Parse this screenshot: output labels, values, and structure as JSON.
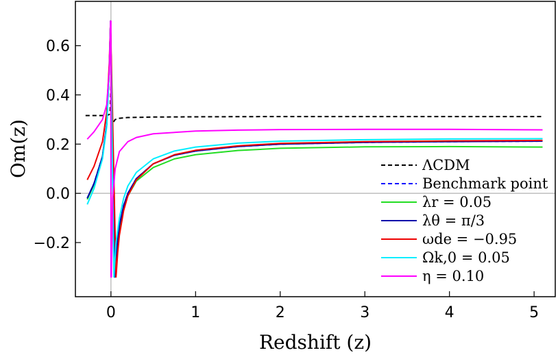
{
  "chart_data": {
    "type": "line",
    "title": "",
    "xlabel": "Redshift (z)",
    "ylabel": "Om(z)",
    "xlim": [
      -0.42,
      5.25
    ],
    "ylim": [
      -0.42,
      0.78
    ],
    "x_ticks": [
      0,
      1,
      2,
      3,
      4,
      5
    ],
    "x_tick_labels": [
      "0",
      "1",
      "2",
      "3",
      "4",
      "5"
    ],
    "y_ticks": [
      -0.2,
      0.0,
      0.2,
      0.4,
      0.6
    ],
    "y_tick_labels": [
      "−0.2",
      "0.0",
      "0.2",
      "0.4",
      "0.6"
    ],
    "grid": false,
    "reference_lines": {
      "x": 0,
      "y": 0
    },
    "legend_position": "right",
    "series": [
      {
        "name": "ΛCDM",
        "color": "#000000",
        "dash": "dashed",
        "points": [
          [
            -0.3,
            0.316
          ],
          [
            -0.2,
            0.316
          ],
          [
            -0.1,
            0.316
          ],
          [
            -0.05,
            0.317
          ],
          [
            -0.02,
            0.32
          ],
          [
            -0.01,
            0.33
          ],
          [
            0.0,
            0.44
          ],
          [
            0.005,
            0.3
          ],
          [
            0.01,
            0.28
          ],
          [
            0.02,
            0.285
          ],
          [
            0.05,
            0.3
          ],
          [
            0.1,
            0.305
          ],
          [
            0.2,
            0.308
          ],
          [
            0.5,
            0.31
          ],
          [
            1.0,
            0.311
          ],
          [
            2.0,
            0.312
          ],
          [
            3.0,
            0.312
          ],
          [
            4.0,
            0.312
          ],
          [
            5.1,
            0.312
          ]
        ]
      },
      {
        "name": "Benchmark point",
        "color": "#0000ff",
        "dash": "dashed",
        "points": [
          [
            -0.28,
            -0.02
          ],
          [
            -0.2,
            0.04
          ],
          [
            -0.1,
            0.15
          ],
          [
            -0.05,
            0.28
          ],
          [
            -0.02,
            0.5
          ],
          [
            -0.005,
            0.7
          ],
          [
            0.045,
            -0.34
          ],
          [
            0.07,
            -0.22
          ],
          [
            0.1,
            -0.13
          ],
          [
            0.15,
            -0.05
          ],
          [
            0.2,
            0.0
          ],
          [
            0.3,
            0.06
          ],
          [
            0.5,
            0.12
          ],
          [
            0.75,
            0.155
          ],
          [
            1.0,
            0.172
          ],
          [
            1.5,
            0.19
          ],
          [
            2.0,
            0.2
          ],
          [
            3.0,
            0.207
          ],
          [
            4.0,
            0.21
          ],
          [
            5.1,
            0.212
          ]
        ]
      },
      {
        "name": "λr = 0.05",
        "color": "#22dd22",
        "dash": "solid",
        "points": [
          [
            -0.28,
            -0.025
          ],
          [
            -0.2,
            0.035
          ],
          [
            -0.1,
            0.15
          ],
          [
            -0.05,
            0.28
          ],
          [
            -0.02,
            0.5
          ],
          [
            -0.005,
            0.7
          ],
          [
            0.045,
            -0.34
          ],
          [
            0.07,
            -0.22
          ],
          [
            0.1,
            -0.14
          ],
          [
            0.15,
            -0.06
          ],
          [
            0.2,
            -0.01
          ],
          [
            0.3,
            0.05
          ],
          [
            0.5,
            0.105
          ],
          [
            0.75,
            0.14
          ],
          [
            1.0,
            0.157
          ],
          [
            1.5,
            0.174
          ],
          [
            2.0,
            0.183
          ],
          [
            3.0,
            0.189
          ],
          [
            4.0,
            0.19
          ],
          [
            5.1,
            0.188
          ]
        ]
      },
      {
        "name": "λθ = π/3",
        "color": "#0000aa",
        "dash": "solid",
        "points": [
          [
            -0.28,
            -0.02
          ],
          [
            -0.2,
            0.04
          ],
          [
            -0.1,
            0.15
          ],
          [
            -0.05,
            0.28
          ],
          [
            -0.02,
            0.5
          ],
          [
            -0.005,
            0.7
          ],
          [
            0.045,
            -0.34
          ],
          [
            0.07,
            -0.22
          ],
          [
            0.1,
            -0.13
          ],
          [
            0.15,
            -0.05
          ],
          [
            0.2,
            0.0
          ],
          [
            0.3,
            0.06
          ],
          [
            0.5,
            0.12
          ],
          [
            0.75,
            0.155
          ],
          [
            1.0,
            0.172
          ],
          [
            1.5,
            0.19
          ],
          [
            2.0,
            0.2
          ],
          [
            3.0,
            0.207
          ],
          [
            4.0,
            0.21
          ],
          [
            5.1,
            0.212
          ]
        ]
      },
      {
        "name": "ωde = −0.95",
        "color": "#ee0000",
        "dash": "solid",
        "points": [
          [
            -0.28,
            0.055
          ],
          [
            -0.2,
            0.11
          ],
          [
            -0.1,
            0.21
          ],
          [
            -0.05,
            0.33
          ],
          [
            -0.02,
            0.53
          ],
          [
            -0.005,
            0.7
          ],
          [
            0.06,
            -0.34
          ],
          [
            0.08,
            -0.24
          ],
          [
            0.1,
            -0.17
          ],
          [
            0.15,
            -0.07
          ],
          [
            0.2,
            -0.01
          ],
          [
            0.3,
            0.055
          ],
          [
            0.5,
            0.12
          ],
          [
            0.75,
            0.157
          ],
          [
            1.0,
            0.175
          ],
          [
            1.5,
            0.193
          ],
          [
            2.0,
            0.203
          ],
          [
            3.0,
            0.21
          ],
          [
            4.0,
            0.213
          ],
          [
            5.1,
            0.215
          ]
        ]
      },
      {
        "name": "Ωk,0 = 0.05",
        "color": "#00eeff",
        "dash": "solid",
        "points": [
          [
            -0.28,
            -0.045
          ],
          [
            -0.2,
            0.02
          ],
          [
            -0.1,
            0.14
          ],
          [
            -0.05,
            0.27
          ],
          [
            -0.02,
            0.5
          ],
          [
            -0.005,
            0.7
          ],
          [
            0.035,
            -0.34
          ],
          [
            0.06,
            -0.2
          ],
          [
            0.1,
            -0.1
          ],
          [
            0.15,
            -0.02
          ],
          [
            0.2,
            0.03
          ],
          [
            0.3,
            0.085
          ],
          [
            0.5,
            0.14
          ],
          [
            0.75,
            0.172
          ],
          [
            1.0,
            0.188
          ],
          [
            1.5,
            0.204
          ],
          [
            2.0,
            0.212
          ],
          [
            3.0,
            0.218
          ],
          [
            4.0,
            0.221
          ],
          [
            5.1,
            0.222
          ]
        ]
      },
      {
        "name": "η = 0.10",
        "color": "#ff00ff",
        "dash": "solid",
        "points": [
          [
            -0.28,
            0.22
          ],
          [
            -0.2,
            0.25
          ],
          [
            -0.1,
            0.3
          ],
          [
            -0.05,
            0.36
          ],
          [
            -0.02,
            0.5
          ],
          [
            -0.005,
            0.7
          ],
          [
            0.0,
            0.7
          ],
          [
            0.0,
            -0.34
          ],
          [
            0.005,
            -0.34
          ],
          [
            0.02,
            -0.02
          ],
          [
            0.05,
            0.1
          ],
          [
            0.1,
            0.17
          ],
          [
            0.2,
            0.21
          ],
          [
            0.3,
            0.227
          ],
          [
            0.5,
            0.242
          ],
          [
            1.0,
            0.253
          ],
          [
            1.5,
            0.257
          ],
          [
            2.0,
            0.259
          ],
          [
            3.0,
            0.26
          ],
          [
            4.0,
            0.26
          ],
          [
            5.1,
            0.258
          ]
        ]
      }
    ]
  }
}
